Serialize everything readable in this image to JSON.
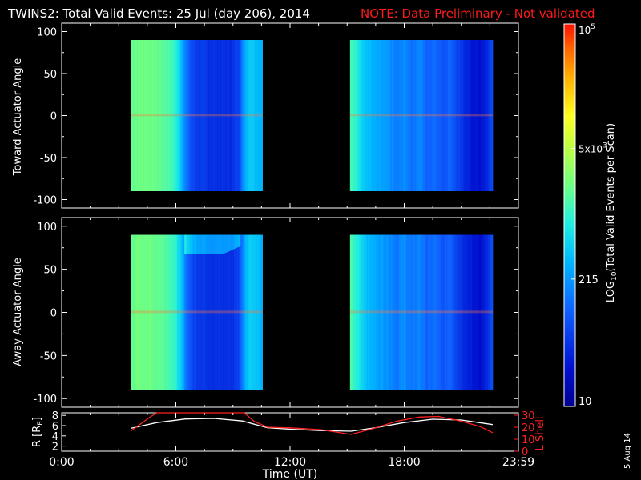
{
  "header": {
    "title": "TWINS2: Total Valid Events: 25 Jul (day 206), 2014",
    "note": "NOTE: Data Preliminary - Not validated"
  },
  "colors": {
    "background": "#000000",
    "axes": "#ffffff",
    "note": "#ff1a1a",
    "lshell": "#ff2020",
    "radius": "#ffffff"
  },
  "chart_data": [
    {
      "type": "heatmap",
      "name": "toward-panel",
      "ylabel": "Toward Actuator Angle",
      "xlim": [
        0,
        24
      ],
      "ylim": [
        -110,
        110
      ],
      "yticks": [
        -100,
        -50,
        0,
        50,
        100
      ],
      "xticks": [
        0,
        6,
        12,
        18,
        24
      ],
      "data_ranges": [
        [
          3.65,
          10.55
        ],
        [
          15.15,
          22.65
        ]
      ],
      "angle_range": [
        -90,
        90
      ],
      "log_events": [
        [
          3.65,
          3.28
        ],
        [
          4.0,
          3.3
        ],
        [
          4.4,
          3.33
        ],
        [
          4.8,
          3.28
        ],
        [
          5.2,
          3.25
        ],
        [
          5.5,
          3.2
        ],
        [
          5.8,
          3.1
        ],
        [
          6.0,
          2.95
        ],
        [
          6.2,
          2.72
        ],
        [
          6.4,
          2.4
        ],
        [
          6.6,
          2.05
        ],
        [
          6.9,
          1.8
        ],
        [
          7.2,
          1.72
        ],
        [
          7.6,
          1.68
        ],
        [
          8.0,
          1.65
        ],
        [
          8.5,
          1.63
        ],
        [
          9.0,
          1.65
        ],
        [
          9.3,
          1.8
        ],
        [
          9.5,
          2.2
        ],
        [
          9.7,
          2.55
        ],
        [
          9.9,
          2.7
        ],
        [
          10.1,
          2.62
        ],
        [
          10.3,
          2.55
        ],
        [
          10.55,
          2.5
        ],
        [
          15.15,
          3.15
        ],
        [
          15.4,
          3.0
        ],
        [
          15.7,
          2.82
        ],
        [
          16.0,
          2.6
        ],
        [
          16.4,
          2.45
        ],
        [
          16.8,
          2.38
        ],
        [
          17.2,
          2.3
        ],
        [
          17.6,
          2.15
        ],
        [
          18.0,
          2.28
        ],
        [
          18.4,
          2.1
        ],
        [
          18.8,
          2.25
        ],
        [
          19.2,
          2.0
        ],
        [
          19.6,
          2.1
        ],
        [
          20.0,
          1.9
        ],
        [
          20.4,
          2.05
        ],
        [
          20.8,
          1.78
        ],
        [
          21.2,
          1.6
        ],
        [
          21.6,
          1.45
        ],
        [
          22.0,
          1.4
        ],
        [
          22.3,
          1.55
        ],
        [
          22.65,
          1.85
        ]
      ]
    },
    {
      "type": "heatmap",
      "name": "away-panel",
      "ylabel": "Away Actuator Angle",
      "xlim": [
        0,
        24
      ],
      "ylim": [
        -110,
        110
      ],
      "yticks": [
        -100,
        -50,
        0,
        50,
        100
      ],
      "xticks": [
        0,
        6,
        12,
        18,
        24
      ],
      "data_ranges": [
        [
          3.65,
          10.55
        ],
        [
          15.15,
          22.65
        ]
      ],
      "angle_range": [
        -90,
        90
      ],
      "note_feature": "reduced counts above ~70 deg between 6:30 and 9:30",
      "log_events": [
        [
          3.65,
          3.28
        ],
        [
          4.0,
          3.3
        ],
        [
          4.4,
          3.33
        ],
        [
          4.8,
          3.28
        ],
        [
          5.2,
          3.25
        ],
        [
          5.5,
          3.2
        ],
        [
          5.8,
          3.1
        ],
        [
          6.0,
          2.95
        ],
        [
          6.2,
          2.72
        ],
        [
          6.4,
          2.4
        ],
        [
          6.6,
          2.05
        ],
        [
          6.9,
          1.8
        ],
        [
          7.2,
          1.72
        ],
        [
          7.6,
          1.68
        ],
        [
          8.0,
          1.65
        ],
        [
          8.5,
          1.63
        ],
        [
          9.0,
          1.65
        ],
        [
          9.3,
          1.8
        ],
        [
          9.5,
          2.2
        ],
        [
          9.7,
          2.55
        ],
        [
          9.9,
          2.7
        ],
        [
          10.1,
          2.62
        ],
        [
          10.3,
          2.55
        ],
        [
          10.55,
          2.5
        ],
        [
          15.15,
          3.15
        ],
        [
          15.4,
          3.0
        ],
        [
          15.7,
          2.82
        ],
        [
          16.0,
          2.6
        ],
        [
          16.4,
          2.45
        ],
        [
          16.8,
          2.38
        ],
        [
          17.2,
          2.3
        ],
        [
          17.6,
          2.15
        ],
        [
          18.0,
          2.28
        ],
        [
          18.4,
          2.1
        ],
        [
          18.8,
          2.25
        ],
        [
          19.2,
          2.0
        ],
        [
          19.6,
          2.1
        ],
        [
          20.0,
          1.9
        ],
        [
          20.4,
          2.05
        ],
        [
          20.8,
          1.78
        ],
        [
          21.2,
          1.6
        ],
        [
          21.6,
          1.45
        ],
        [
          22.0,
          1.4
        ],
        [
          22.3,
          1.55
        ],
        [
          22.65,
          1.85
        ]
      ]
    },
    {
      "type": "line",
      "name": "orbit-panel",
      "xlabel": "Time (UT)",
      "ylabel": "R [R_E]",
      "ylabel_main": "R [R",
      "ylabel_sub": "E",
      "ylabel_end": "]",
      "y2label": "L Shell",
      "xlim": [
        0,
        24
      ],
      "ylim": [
        1,
        8.5
      ],
      "yticks": [
        2,
        4,
        6,
        8
      ],
      "y2lim": [
        0,
        32
      ],
      "y2ticks": [
        0,
        10,
        20,
        30
      ],
      "xtick_labels": [
        "0:00",
        "6:00",
        "12:00",
        "18:00",
        "23:59"
      ],
      "xticks": [
        0,
        6,
        12,
        18,
        24
      ],
      "series": [
        {
          "name": "R",
          "axis": "left",
          "points": [
            [
              3.65,
              5.5
            ],
            [
              5.0,
              6.6
            ],
            [
              6.5,
              7.3
            ],
            [
              8.0,
              7.4
            ],
            [
              9.5,
              6.9
            ],
            [
              10.8,
              5.6
            ],
            [
              12.0,
              5.3
            ],
            [
              13.5,
              5.05
            ],
            [
              15.2,
              4.9
            ],
            [
              16.5,
              5.6
            ],
            [
              18.0,
              6.6
            ],
            [
              19.5,
              7.25
            ],
            [
              21.0,
              7.1
            ],
            [
              22.65,
              6.2
            ]
          ]
        },
        {
          "name": "L Shell",
          "axis": "right",
          "points": [
            [
              3.65,
              17
            ],
            [
              4.6,
              28
            ],
            [
              5.0,
              32
            ],
            [
              9.6,
              32
            ],
            [
              10.1,
              25
            ],
            [
              10.8,
              20
            ],
            [
              12.0,
              19.5
            ],
            [
              13.6,
              18
            ],
            [
              15.2,
              14
            ],
            [
              16.4,
              19
            ],
            [
              17.6,
              25
            ],
            [
              18.8,
              28.5
            ],
            [
              19.8,
              29
            ],
            [
              21.0,
              25
            ],
            [
              22.0,
              20.5
            ],
            [
              22.65,
              15.5
            ]
          ]
        }
      ]
    }
  ],
  "colorbar": {
    "label": "LOG10(Total Valid Events per Scan)",
    "label_main": "LOG",
    "label_sub": "10",
    "label_rest": "(Total Valid Events per Scan)",
    "log_min": 1,
    "log_max": 5,
    "ticks": [
      {
        "log": 1,
        "text": "10"
      },
      {
        "log": 2.332,
        "text": "215"
      }
    ],
    "tick_5x": {
      "log": 3.699,
      "pre": "5x",
      "base": "10",
      "exp": "3"
    },
    "tick_top": {
      "log": 5,
      "base": "10",
      "exp": "5"
    }
  },
  "footer": {
    "date_stamp": "5 Aug 14"
  }
}
